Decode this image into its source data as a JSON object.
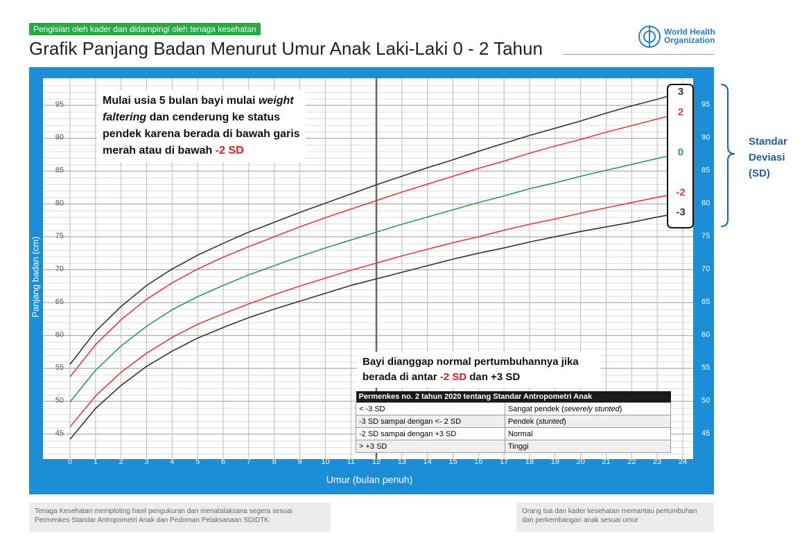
{
  "header": {
    "badge": "Pengisian oleh kader dan didampingi oleh tenaga kesehatan",
    "title": "Grafik Panjang Badan Menurut Umur Anak Laki-Laki 0 - 2 Tahun",
    "logo": [
      "World Health",
      "Organization"
    ]
  },
  "chart_data": {
    "type": "line",
    "x_label": "Umur (bulan penuh)",
    "y_label": "Panjang badan (cm)",
    "x": [
      0,
      1,
      2,
      3,
      4,
      5,
      6,
      7,
      8,
      9,
      10,
      11,
      12,
      13,
      14,
      15,
      16,
      17,
      18,
      19,
      20,
      21,
      22,
      23,
      24
    ],
    "xlim": [
      0,
      24
    ],
    "ylim": [
      41.2,
      99.1
    ],
    "xticks": [
      0,
      1,
      2,
      3,
      4,
      5,
      6,
      7,
      8,
      9,
      10,
      11,
      12,
      13,
      14,
      15,
      16,
      17,
      18,
      19,
      20,
      21,
      22,
      23,
      24
    ],
    "yticks": [
      45,
      50,
      55,
      60,
      65,
      70,
      75,
      80,
      85,
      90,
      95
    ],
    "grid": true,
    "legend_title": "Standar Deviasi (SD)",
    "series": [
      {
        "name": "3",
        "color": "#333333",
        "values": [
          55.6,
          60.6,
          64.4,
          67.6,
          70.1,
          72.2,
          74.0,
          75.7,
          77.2,
          78.7,
          80.1,
          81.5,
          82.9,
          84.2,
          85.5,
          86.7,
          88.0,
          89.2,
          90.4,
          91.5,
          92.6,
          93.8,
          94.9,
          95.9,
          97.0
        ]
      },
      {
        "name": "2",
        "color": "#e8383d",
        "values": [
          53.7,
          58.6,
          62.4,
          65.5,
          68.0,
          70.1,
          71.9,
          73.5,
          75.0,
          76.5,
          77.9,
          79.2,
          80.5,
          81.8,
          83.0,
          84.2,
          85.4,
          86.5,
          87.7,
          88.8,
          89.8,
          90.9,
          91.9,
          92.9,
          93.9
        ]
      },
      {
        "name": "0",
        "color": "#2e9a50",
        "values": [
          49.9,
          54.7,
          58.4,
          61.4,
          63.9,
          65.9,
          67.6,
          69.2,
          70.6,
          72.0,
          73.3,
          74.5,
          75.7,
          76.9,
          78.0,
          79.1,
          80.2,
          81.2,
          82.3,
          83.2,
          84.2,
          85.1,
          86.0,
          86.9,
          87.8
        ]
      },
      {
        "name": "-2",
        "color": "#e8383d",
        "values": [
          46.1,
          50.8,
          54.4,
          57.3,
          59.7,
          61.7,
          63.3,
          64.8,
          66.2,
          67.5,
          68.7,
          69.9,
          71.0,
          72.1,
          73.1,
          74.1,
          75.0,
          76.0,
          76.9,
          77.7,
          78.6,
          79.4,
          80.2,
          81.0,
          81.7
        ]
      },
      {
        "name": "-3",
        "color": "#333333",
        "values": [
          44.2,
          48.9,
          52.4,
          55.3,
          57.6,
          59.6,
          61.2,
          62.7,
          64.0,
          65.2,
          66.4,
          67.6,
          68.6,
          69.6,
          70.6,
          71.6,
          72.5,
          73.3,
          74.2,
          75.0,
          75.8,
          76.5,
          77.2,
          78.0,
          78.7
        ]
      }
    ]
  },
  "annotations": [
    [
      "Mulai usia 5 bulan bayi mulai ",
      "weight faltering",
      " dan cenderung ke status pendek karena berada di bawah garis merah atau di bawah ",
      "-2 SD"
    ],
    [
      "Bayi dianggap normal pertumbuhannya jika berada di antar ",
      "-2 SD",
      " dan +3 SD"
    ]
  ],
  "table": {
    "title": "Permenkes no. 2 tahun 2020 tentang Standar Antropometri Anak",
    "rows": [
      {
        "range": "< -3 SD",
        "status": [
          "Sangat pendek (",
          "severely stunted",
          ")"
        ]
      },
      {
        "range": "-3 SD sampai dengan <- 2 SD",
        "status": [
          "Pendek (",
          "stunted",
          ")"
        ]
      },
      {
        "range": "-2 SD sampai dengan +3 SD",
        "status": [
          "Normal"
        ]
      },
      {
        "range": "> +3 SD",
        "status": [
          "Tinggi"
        ]
      }
    ]
  },
  "footer": [
    "Tenaga Kesehatan memploting hasil pengukuran dan menatalaksana segera sesuai Permenkes Standar Antropometri Anak dan Pedoman Pelaksanaan SDIDTK.",
    "Orang tua dan kader kesehatan memantau pertumbuhan dan perkembangan anak sesuai umur"
  ]
}
